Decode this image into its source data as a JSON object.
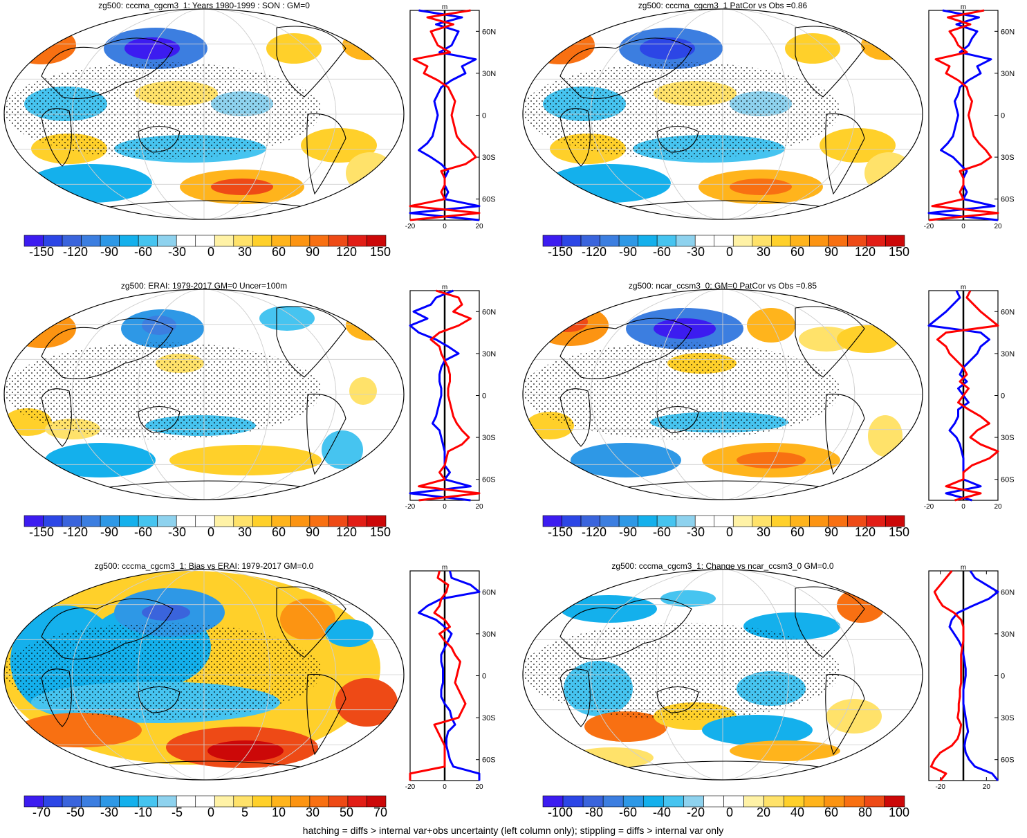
{
  "caption": "hatching = diffs > internal var+obs uncertainty (left column only); stippling = diffs > internal var only",
  "palette_primary": [
    "#3c1cf0",
    "#2c46e6",
    "#3a64dc",
    "#3c7ee0",
    "#2e98e6",
    "#14b0ec",
    "#46c4f0",
    "#8ed2ee",
    "#ffffff",
    "#ffffff",
    "#fff2a6",
    "#ffe26a",
    "#ffd02a",
    "#ffb41c",
    "#fc9412",
    "#f87012",
    "#ee4a16",
    "#e21e16",
    "#cc0808"
  ],
  "palette_change": [
    "#3c1cf0",
    "#2c46e6",
    "#3a64dc",
    "#3c7ee0",
    "#2e98e6",
    "#14b0ec",
    "#46c4f0",
    "#8ed2ee",
    "#ffffff",
    "#ffffff",
    "#fff2a6",
    "#ffe26a",
    "#ffd02a",
    "#ffb41c",
    "#fc9412",
    "#f87012",
    "#ee4a16",
    "#cc0808"
  ],
  "line_colors": {
    "model": "#ff0000",
    "reference": "#0000ff",
    "zero": "#000000"
  },
  "zonal_unit": "m",
  "lat_labels": [
    "60N",
    "30N",
    "0",
    "30S",
    "60S"
  ],
  "chart_data": [
    {
      "type": "heatmap",
      "title": "zg500: cccma_cgcm3_1: Years 1980-1999 : SON : GM=0",
      "colorbar_ticks": [
        "-150",
        "-120",
        "-90",
        "-60",
        "-30",
        "0",
        "30",
        "60",
        "90",
        "120",
        "150"
      ],
      "zonal_profile": {
        "xlim": [
          -20,
          20
        ],
        "xticks": [
          "-20",
          "0",
          "20"
        ],
        "xunit": "m"
      }
    },
    {
      "type": "heatmap",
      "title": "zg500: cccma_cgcm3_1 PatCor vs Obs =0.86",
      "colorbar_ticks": [
        "-150",
        "-120",
        "-90",
        "-60",
        "-30",
        "0",
        "30",
        "60",
        "90",
        "120",
        "150"
      ],
      "zonal_profile": {
        "xlim": [
          -20,
          20
        ],
        "xticks": [
          "-20",
          "0",
          "20"
        ],
        "xunit": "m"
      }
    },
    {
      "type": "heatmap",
      "title": "zg500: ERAI: 1979-2017 GM=0 Uncer=100m",
      "colorbar_ticks": [
        "-150",
        "-120",
        "-90",
        "-60",
        "-30",
        "0",
        "30",
        "60",
        "90",
        "120",
        "150"
      ],
      "zonal_profile": {
        "xlim": [
          -20,
          20
        ],
        "xticks": [
          "-20",
          "0",
          "20"
        ],
        "xunit": "m"
      }
    },
    {
      "type": "heatmap",
      "title": "zg500: ncar_ccsm3_0: GM=0 PatCor vs Obs =0.85",
      "colorbar_ticks": [
        "-150",
        "-120",
        "-90",
        "-60",
        "-30",
        "0",
        "30",
        "60",
        "90",
        "120",
        "150"
      ],
      "zonal_profile": {
        "xlim": [
          -20,
          20
        ],
        "xticks": [
          "-20",
          "0",
          "20"
        ],
        "xunit": "m"
      }
    },
    {
      "type": "heatmap",
      "title": "zg500: cccma_cgcm3_1: Bias vs ERAI: 1979-2017  GM=0.0",
      "colorbar_ticks": [
        "-70",
        "-50",
        "-30",
        "-10",
        "-5",
        "0",
        "5",
        "10",
        "30",
        "50",
        "70"
      ],
      "zonal_profile": {
        "xlim": [
          -20,
          20
        ],
        "xticks": [
          "-20",
          "0",
          "20"
        ],
        "xunit": "m"
      }
    },
    {
      "type": "heatmap",
      "title": "zg500: cccma_cgcm3_1: Change vs ncar_ccsm3_0 GM=0.0",
      "colorbar_ticks": [
        "-100",
        "-80",
        "-60",
        "-40",
        "-20",
        "0",
        "20",
        "40",
        "60",
        "80",
        "100"
      ],
      "zonal_profile": {
        "xlim": [
          -30,
          30
        ],
        "xticks": [
          "-20",
          "20"
        ],
        "xunit": "m"
      }
    }
  ]
}
